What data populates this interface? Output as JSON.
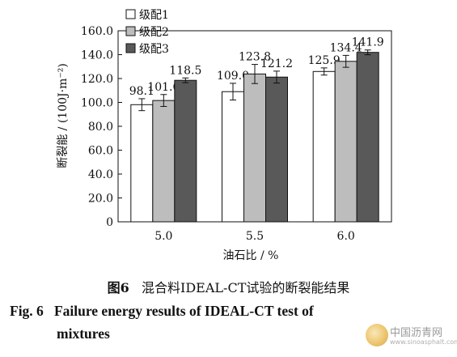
{
  "chart_data": {
    "type": "bar",
    "categories": [
      "5.0",
      "5.5",
      "6.0"
    ],
    "series": [
      {
        "name": "级配1",
        "color": "#ffffff",
        "values": [
          98.1,
          109.0,
          125.9
        ],
        "errors": [
          5,
          7,
          3
        ]
      },
      {
        "name": "级配2",
        "color": "#bdbdbd",
        "values": [
          101.6,
          123.8,
          134.4
        ],
        "errors": [
          5,
          8,
          5
        ]
      },
      {
        "name": "级配3",
        "color": "#595959",
        "values": [
          118.5,
          121.2,
          141.9
        ],
        "errors": [
          2,
          5,
          2
        ]
      }
    ],
    "data_labels": [
      [
        "98.1",
        "101.6",
        "118.5"
      ],
      [
        "109.0",
        "123.8",
        "121.2"
      ],
      [
        "125.9",
        "134.4",
        "141.9"
      ]
    ],
    "xlabel": "油石比 / %",
    "ylabel": "断裂能 / (100J·m⁻²)",
    "ylim": [
      0,
      160
    ],
    "yticks": [
      "0",
      "20.0",
      "40.0",
      "60.0",
      "80.0",
      "100.0",
      "120.0",
      "140.0",
      "160.0"
    ],
    "legend_position": "top-left",
    "grid": false
  },
  "caption": {
    "cn_fig": "图6",
    "cn_text": "混合料IDEAL-CT试验的断裂能结果",
    "en_fig": "Fig. 6",
    "en_line1": "Failure energy results of IDEAL-CT test of",
    "en_line2": "mixtures"
  },
  "watermark": {
    "text": "中国沥青网",
    "url": "www.sinoasphalt.com"
  }
}
